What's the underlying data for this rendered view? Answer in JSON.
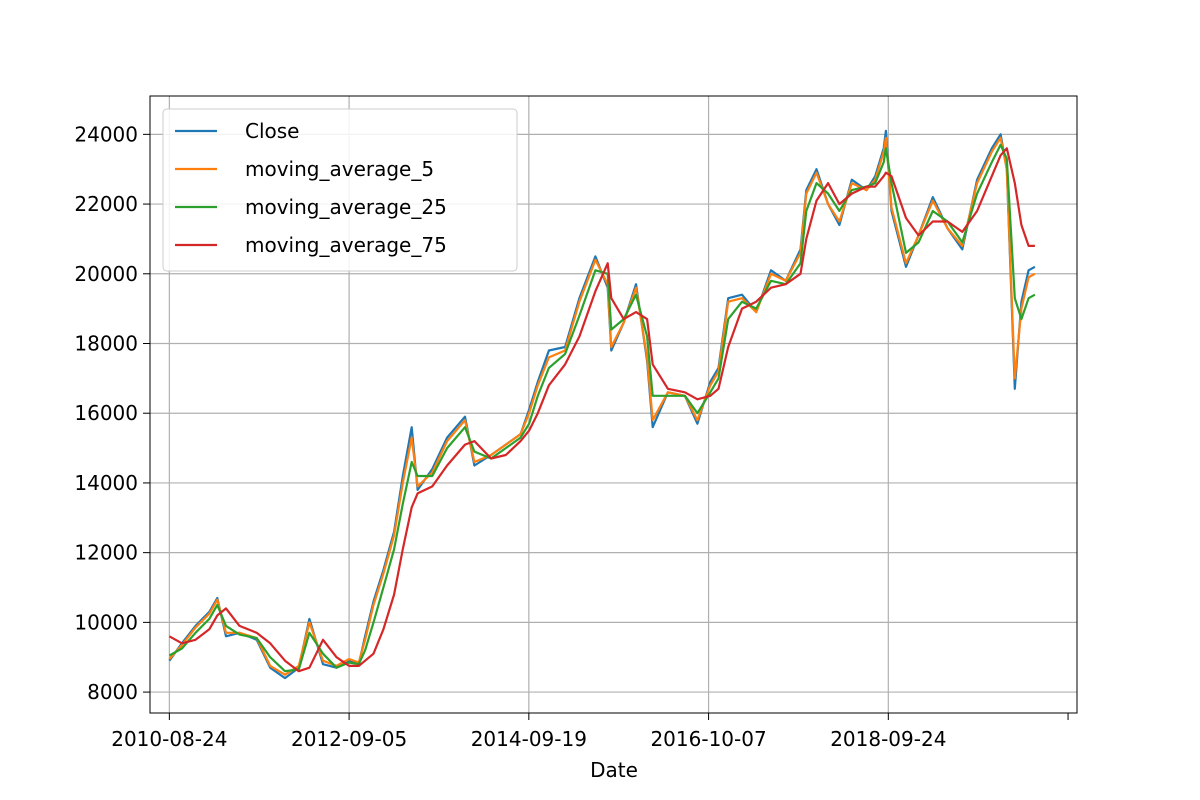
{
  "chart_data": {
    "type": "line",
    "title": "",
    "xlabel": "Date",
    "ylabel": "",
    "x_ticks": [
      "2010-08-24",
      "2012-09-05",
      "2014-09-19",
      "2016-10-07",
      "2018-09-24",
      ""
    ],
    "y_ticks": [
      8000,
      10000,
      12000,
      14000,
      16000,
      18000,
      20000,
      22000,
      24000
    ],
    "xlim": [
      "2010-06-05",
      "2020-12-01"
    ],
    "ylim": [
      7400,
      25100
    ],
    "grid": true,
    "legend_position": "upper-left",
    "x": [
      "2010-08-24",
      "2010-10-15",
      "2010-12-10",
      "2011-02-05",
      "2011-03-10",
      "2011-04-15",
      "2011-06-10",
      "2011-08-20",
      "2011-10-15",
      "2011-12-15",
      "2012-02-10",
      "2012-03-25",
      "2012-05-20",
      "2012-07-15",
      "2012-09-05",
      "2012-10-15",
      "2012-11-10",
      "2012-12-15",
      "2013-01-25",
      "2013-03-10",
      "2013-04-15",
      "2013-05-22",
      "2013-06-15",
      "2013-08-15",
      "2013-10-15",
      "2013-12-28",
      "2014-02-05",
      "2014-04-15",
      "2014-06-15",
      "2014-08-15",
      "2014-09-19",
      "2014-10-25",
      "2014-12-10",
      "2015-02-15",
      "2015-04-15",
      "2015-06-20",
      "2015-08-10",
      "2015-08-25",
      "2015-10-15",
      "2015-12-05",
      "2016-01-20",
      "2016-02-12",
      "2016-04-15",
      "2016-06-24",
      "2016-08-15",
      "2016-10-07",
      "2016-11-10",
      "2016-12-20",
      "2017-02-15",
      "2017-04-15",
      "2017-06-15",
      "2017-08-15",
      "2017-10-15",
      "2017-11-08",
      "2017-12-20",
      "2018-02-06",
      "2018-03-25",
      "2018-05-15",
      "2018-07-15",
      "2018-08-20",
      "2018-09-24",
      "2018-10-03",
      "2018-10-26",
      "2018-12-25",
      "2019-02-15",
      "2019-04-15",
      "2019-06-15",
      "2019-08-15",
      "2019-10-15",
      "2019-12-15",
      "2020-01-20",
      "2020-02-15",
      "2020-03-19",
      "2020-04-15",
      "2020-05-15",
      "2020-06-10"
    ],
    "series": [
      {
        "name": "Close",
        "color": "#1f77b4",
        "values": [
          8900,
          9400,
          9900,
          10300,
          10700,
          9600,
          9700,
          9500,
          8700,
          8400,
          8700,
          10100,
          8800,
          8700,
          8900,
          8800,
          9600,
          10600,
          11500,
          12600,
          14200,
          15600,
          13800,
          14400,
          15300,
          15900,
          14500,
          14800,
          15100,
          15400,
          16100,
          16900,
          17800,
          17900,
          19300,
          20500,
          19600,
          17800,
          18600,
          19700,
          17500,
          15600,
          16600,
          16500,
          15700,
          16900,
          17300,
          19300,
          19400,
          18900,
          20100,
          19800,
          20700,
          22400,
          23000,
          22000,
          21400,
          22700,
          22400,
          22800,
          23600,
          24100,
          21800,
          20200,
          21100,
          22200,
          21300,
          20700,
          22700,
          23600,
          24000,
          23000,
          16700,
          19200,
          20100,
          20200
        ]
      },
      {
        "name": "moving_average_5",
        "color": "#ff7f0e",
        "values": [
          8950,
          9350,
          9850,
          10250,
          10650,
          9700,
          9700,
          9550,
          8750,
          8500,
          8750,
          10000,
          8900,
          8750,
          8950,
          8850,
          9500,
          10500,
          11400,
          12500,
          14000,
          15300,
          13900,
          14300,
          15200,
          15800,
          14600,
          14800,
          15100,
          15400,
          16000,
          16800,
          17600,
          17800,
          19200,
          20400,
          19700,
          17900,
          18600,
          19600,
          17600,
          15800,
          16600,
          16500,
          15800,
          16800,
          17200,
          19200,
          19300,
          18900,
          20000,
          19800,
          20600,
          22300,
          22900,
          22000,
          21500,
          22600,
          22400,
          22700,
          23500,
          23900,
          21900,
          20300,
          21100,
          22100,
          21300,
          20800,
          22600,
          23500,
          23900,
          23000,
          17000,
          19000,
          19900,
          20000
        ]
      },
      {
        "name": "moving_average_25",
        "color": "#2ca02c",
        "values": [
          9050,
          9250,
          9700,
          10100,
          10500,
          9900,
          9650,
          9550,
          9000,
          8600,
          8650,
          9700,
          9100,
          8700,
          8850,
          8800,
          9200,
          10000,
          11000,
          12100,
          13400,
          14600,
          14200,
          14200,
          15000,
          15600,
          14900,
          14700,
          15000,
          15300,
          15700,
          16500,
          17300,
          17700,
          18800,
          20100,
          20000,
          18400,
          18700,
          19400,
          18200,
          16500,
          16500,
          16500,
          16000,
          16600,
          17000,
          18700,
          19200,
          19000,
          19800,
          19700,
          20300,
          21800,
          22600,
          22300,
          21800,
          22400,
          22500,
          22600,
          23200,
          23600,
          22600,
          20600,
          20900,
          21800,
          21500,
          20900,
          22300,
          23200,
          23700,
          23300,
          19300,
          18700,
          19300,
          19400
        ]
      },
      {
        "name": "moving_average_75",
        "color": "#d62728",
        "values": [
          9600,
          9400,
          9500,
          9800,
          10200,
          10400,
          9900,
          9700,
          9400,
          8900,
          8600,
          8700,
          9500,
          9000,
          8750,
          8750,
          8900,
          9100,
          9800,
          10800,
          12100,
          13300,
          13700,
          13900,
          14500,
          15100,
          15200,
          14700,
          14800,
          15200,
          15500,
          16000,
          16800,
          17400,
          18200,
          19500,
          20300,
          19300,
          18700,
          18900,
          18700,
          17400,
          16700,
          16600,
          16400,
          16500,
          16700,
          17900,
          19000,
          19200,
          19600,
          19700,
          20000,
          21000,
          22100,
          22600,
          22000,
          22300,
          22500,
          22500,
          22800,
          22900,
          22800,
          21600,
          21100,
          21500,
          21500,
          21200,
          21800,
          22800,
          23400,
          23600,
          22600,
          21400,
          20800,
          20800
        ]
      }
    ]
  }
}
